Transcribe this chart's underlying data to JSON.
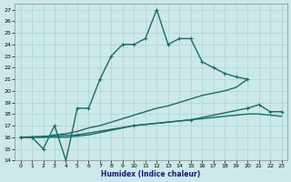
{
  "xlabel": "Humidex (Indice chaleur)",
  "background_color": "#cce8e8",
  "grid_color": "#aad4d4",
  "line_color": "#1a6b6b",
  "xlim": [
    -0.5,
    23.5
  ],
  "ylim": [
    14,
    27.5
  ],
  "yticks": [
    14,
    15,
    16,
    17,
    18,
    19,
    20,
    21,
    22,
    23,
    24,
    25,
    26,
    27
  ],
  "xticks": [
    0,
    1,
    2,
    3,
    4,
    5,
    6,
    7,
    8,
    9,
    10,
    11,
    12,
    13,
    14,
    15,
    16,
    17,
    18,
    19,
    20,
    21,
    22,
    23
  ],
  "series": [
    {
      "x": [
        0,
        1,
        2,
        3,
        4,
        5,
        6,
        7,
        8,
        9,
        10,
        11,
        12,
        13,
        14,
        15,
        16,
        17,
        18,
        19,
        20
      ],
      "y": [
        16,
        16,
        15,
        17,
        14,
        18.5,
        18.5,
        21,
        23,
        24,
        24,
        24.5,
        27,
        24,
        24.5,
        24.5,
        22.5,
        22,
        21.5,
        21.2,
        21.0
      ],
      "marker": "+",
      "markersize": 3.5,
      "linewidth": 1.0
    },
    {
      "x": [
        0,
        1,
        2,
        3,
        4,
        5,
        6,
        7,
        8,
        9,
        10,
        11,
        12,
        13,
        14,
        15,
        16,
        17,
        18,
        19,
        20
      ],
      "y": [
        16,
        16,
        16,
        16.2,
        16.3,
        16.5,
        16.8,
        17.0,
        17.3,
        17.6,
        17.9,
        18.2,
        18.5,
        18.7,
        19.0,
        19.3,
        19.6,
        19.8,
        20.0,
        20.3,
        21.0
      ],
      "marker": null,
      "markersize": 0,
      "linewidth": 1.0
    },
    {
      "x": [
        0,
        5,
        10,
        15,
        20,
        21,
        22,
        23
      ],
      "y": [
        16,
        16.2,
        17.0,
        17.5,
        18.5,
        18.8,
        18.2,
        18.2
      ],
      "marker": "+",
      "markersize": 3.5,
      "linewidth": 1.0
    },
    {
      "x": [
        0,
        1,
        2,
        3,
        4,
        5,
        6,
        7,
        8,
        9,
        10,
        11,
        12,
        13,
        14,
        15,
        16,
        17,
        18,
        19,
        20,
        21,
        22,
        23
      ],
      "y": [
        16,
        16,
        16,
        16,
        16,
        16.1,
        16.2,
        16.4,
        16.6,
        16.8,
        17.0,
        17.1,
        17.2,
        17.3,
        17.4,
        17.5,
        17.6,
        17.7,
        17.8,
        17.9,
        18.0,
        18.0,
        17.9,
        17.8
      ],
      "marker": null,
      "markersize": 0,
      "linewidth": 1.0
    }
  ]
}
